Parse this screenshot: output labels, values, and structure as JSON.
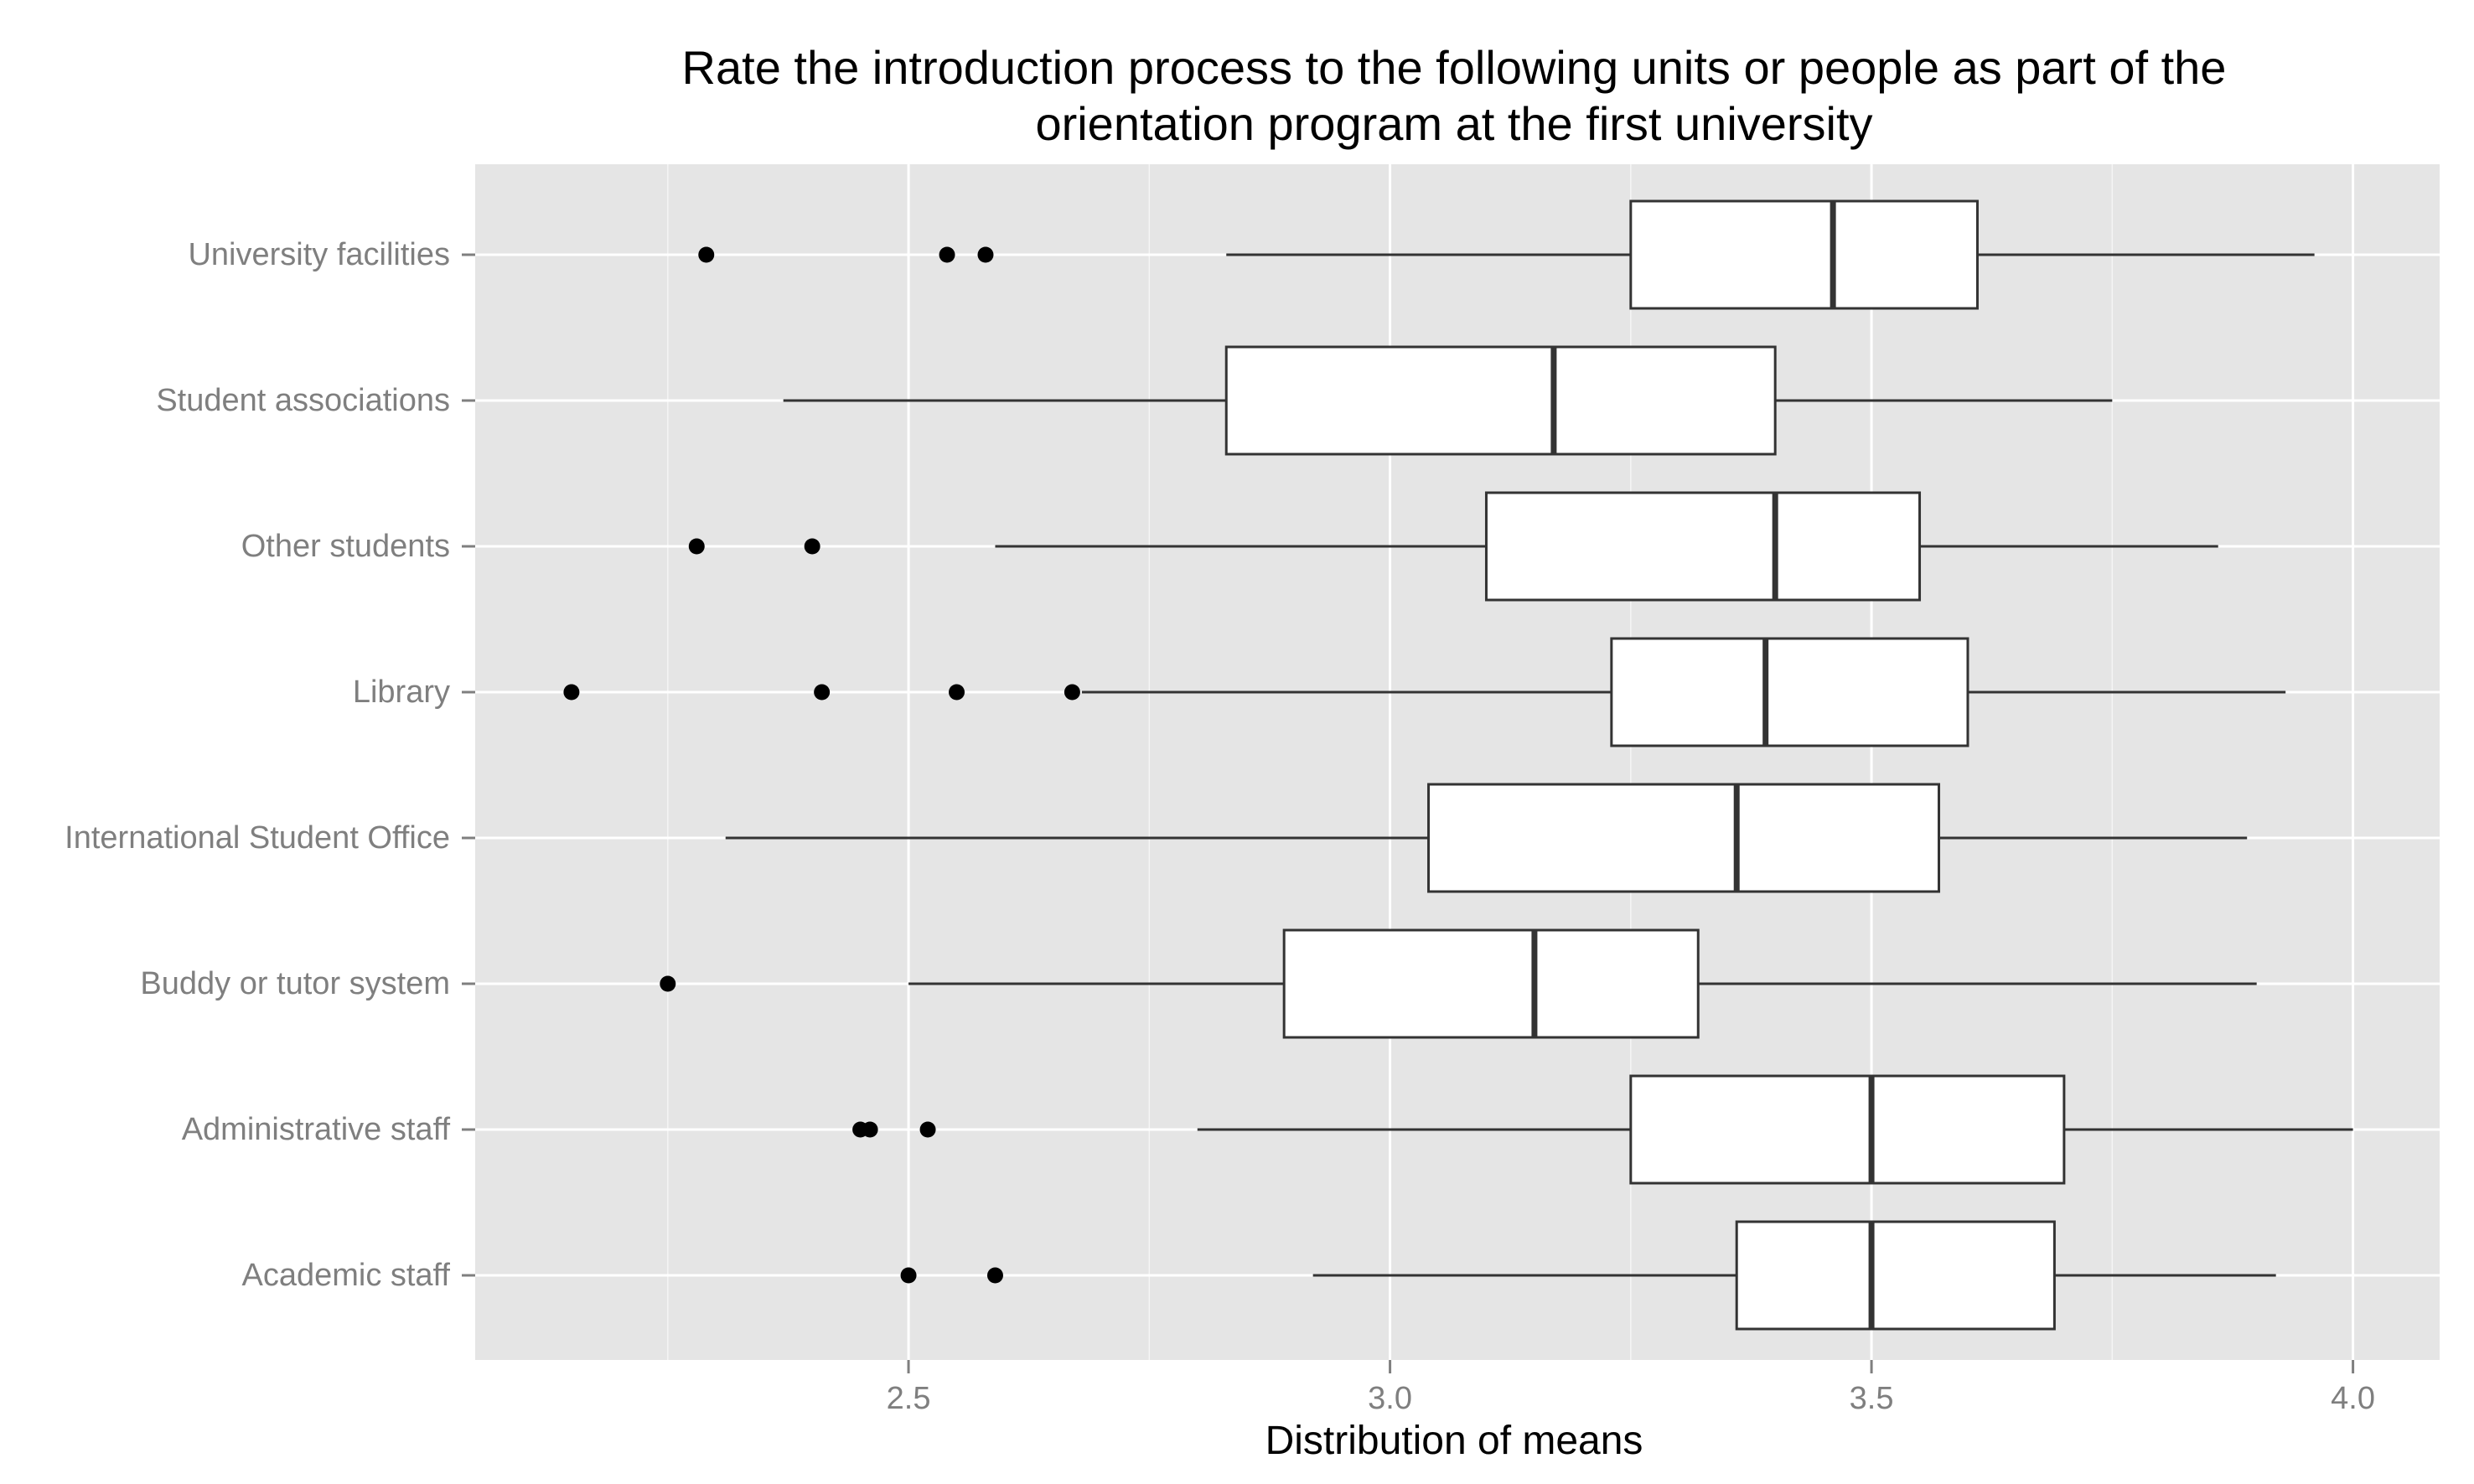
{
  "chart_data": {
    "type": "boxplot",
    "orientation": "horizontal",
    "title_lines": [
      "Rate the introduction process to the following units or people as part of the",
      "orientation program at the first university"
    ],
    "xlabel": "Distribution of means",
    "ylabel": "",
    "xlim": [
      2.05,
      4.09
    ],
    "xticks": [
      2.5,
      3.0,
      3.5,
      4.0
    ],
    "xtick_labels": [
      "2.5",
      "3.0",
      "3.5",
      "4.0"
    ],
    "categories": [
      "University facilities",
      "Student associations",
      "Other students",
      "Library",
      "International Student Office",
      "Buddy or tutor system",
      "Administrative staff",
      "Academic staff"
    ],
    "boxes": [
      {
        "category": "University facilities",
        "whisker_low": 2.83,
        "q1": 3.25,
        "median": 3.46,
        "q3": 3.61,
        "whisker_high": 3.96,
        "outliers": [
          2.29,
          2.54,
          2.58
        ]
      },
      {
        "category": "Student associations",
        "whisker_low": 2.37,
        "q1": 2.83,
        "median": 3.17,
        "q3": 3.4,
        "whisker_high": 3.75,
        "outliers": []
      },
      {
        "category": "Other students",
        "whisker_low": 2.59,
        "q1": 3.1,
        "median": 3.4,
        "q3": 3.55,
        "whisker_high": 3.86,
        "outliers": [
          2.28,
          2.4
        ]
      },
      {
        "category": "Library",
        "whisker_low": 2.68,
        "q1": 3.23,
        "median": 3.39,
        "q3": 3.6,
        "whisker_high": 3.93,
        "outliers": [
          2.15,
          2.41,
          2.55,
          2.67
        ]
      },
      {
        "category": "International Student Office",
        "whisker_low": 2.31,
        "q1": 3.04,
        "median": 3.36,
        "q3": 3.57,
        "whisker_high": 3.89,
        "outliers": []
      },
      {
        "category": "Buddy or tutor system",
        "whisker_low": 2.5,
        "q1": 2.89,
        "median": 3.15,
        "q3": 3.32,
        "whisker_high": 3.9,
        "outliers": [
          2.25
        ]
      },
      {
        "category": "Administrative staff",
        "whisker_low": 2.8,
        "q1": 3.25,
        "median": 3.5,
        "q3": 3.7,
        "whisker_high": 4.0,
        "outliers": [
          2.45,
          2.46,
          2.52
        ]
      },
      {
        "category": "Academic staff",
        "whisker_low": 2.92,
        "q1": 3.36,
        "median": 3.5,
        "q3": 3.69,
        "whisker_high": 3.92,
        "outliers": [
          2.5,
          2.59
        ]
      }
    ],
    "grid": true,
    "legend": "none",
    "colors": {
      "panel_background": "#e5e5e5",
      "gridline": "#ffffff",
      "box_fill": "#ffffff",
      "box_stroke": "#333333",
      "outlier": "#000000",
      "tick_label": "#7f7f7f",
      "title": "#000000"
    }
  }
}
